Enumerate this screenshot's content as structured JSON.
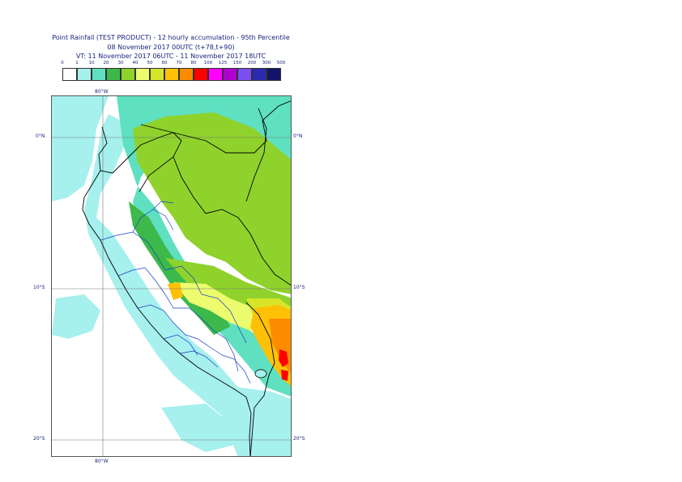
{
  "title": {
    "line1": "Point Rainfall (TEST PRODUCT) - 12 hourly accumulation - 95th Percentile",
    "line2": "08 November 2017 00UTC (t+78,t+90)",
    "line3": "VT: 11 November 2017 06UTC - 11 November 2017 18UTC"
  },
  "legend": {
    "thresholds": [
      "0",
      "1",
      "10",
      "20",
      "30",
      "40",
      "50",
      "60",
      "70",
      "80",
      "100",
      "125",
      "150",
      "200",
      "300",
      "500"
    ],
    "colors": [
      "#ffffff",
      "#a6f0ee",
      "#5fe0c0",
      "#3cb94a",
      "#8fd22c",
      "#ecfc6e",
      "#d6e52a",
      "#ffc107",
      "#ff8c00",
      "#ff0000",
      "#ff00ff",
      "#b000d0",
      "#7b4ff0",
      "#2a2ab0",
      "#14146b"
    ]
  },
  "map": {
    "longitude_label": "80°W",
    "latitude_labels": [
      "0°N",
      "10°S",
      "20°S"
    ]
  }
}
